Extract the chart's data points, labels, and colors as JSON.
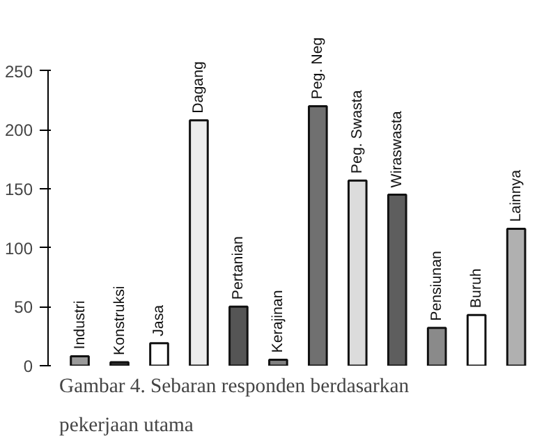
{
  "chart_data": {
    "type": "bar",
    "categories": [
      "Industri",
      "Konstruksi",
      "Jasa",
      "Dagang",
      "Pertanian",
      "Kerajinan",
      "Peg. Neg",
      "Peg. Swasta",
      "Wiraswasta",
      "Pensiunan",
      "Buruh",
      "Lainnya"
    ],
    "values": [
      8,
      3,
      19,
      208,
      50,
      5,
      220,
      157,
      145,
      32,
      43,
      116
    ],
    "colors": [
      "#9a9a9a",
      "#333333",
      "#ffffff",
      "#ececec",
      "#555555",
      "#808080",
      "#707070",
      "#dcdcdc",
      "#5e5e5e",
      "#8a8a8a",
      "#ffffff",
      "#b0b0b0"
    ],
    "ylim": [
      0,
      250
    ],
    "yticks": [
      0,
      50,
      100,
      150,
      200,
      250
    ],
    "grid": false,
    "tick_labels": "y",
    "annotations": [
      "Gambar 4. Sebaran responden berdasarkan pekerjaan utama"
    ]
  }
}
